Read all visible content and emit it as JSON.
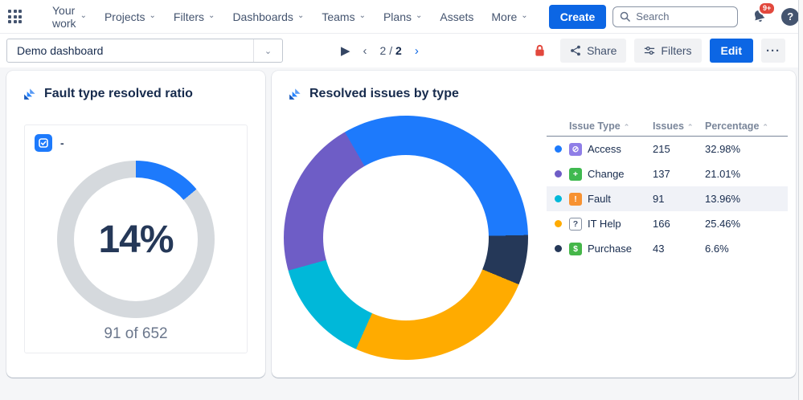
{
  "topnav": {
    "menu": [
      {
        "label": "Your work",
        "chevron": true
      },
      {
        "label": "Projects",
        "chevron": true
      },
      {
        "label": "Filters",
        "chevron": true
      },
      {
        "label": "Dashboards",
        "chevron": true
      },
      {
        "label": "Teams",
        "chevron": true
      },
      {
        "label": "Plans",
        "chevron": true
      },
      {
        "label": "Assets",
        "chevron": false
      },
      {
        "label": "More",
        "chevron": true
      }
    ],
    "create_label": "Create",
    "search_placeholder": "Search",
    "notifications_badge": "9+",
    "help_glyph": "?"
  },
  "toolbar": {
    "dashboard_select_value": "Demo dashboard",
    "pagination": {
      "current": "2",
      "separator": " / ",
      "total": "2"
    },
    "share_label": "Share",
    "filters_label": "Filters",
    "edit_label": "Edit",
    "more_label": "···"
  },
  "colors": {
    "brand_blue": "#0C66E4",
    "chart_blue": "#1D7AFC",
    "chart_purple": "#6E5DC6",
    "chart_cyan": "#00B8D9",
    "chart_amber": "#FFAB00",
    "chart_navy": "#253858",
    "gauge_track": "#D5D9DD",
    "lock_red": "#E2483D",
    "row_highlight": "#F0F2F7"
  },
  "chart_data": [
    {
      "type": "pie",
      "variant": "donut-gauge",
      "title": "Fault type resolved ratio",
      "filter_placeholder": "-",
      "center_label": "14%",
      "sub_label": "91 of 652",
      "numerator": 91,
      "denominator": 652,
      "value_pct": 14,
      "start_angle_deg": 0,
      "value_color": "#1D7AFC",
      "track_color": "#D5D9DD"
    },
    {
      "type": "pie",
      "variant": "donut",
      "title": "Resolved issues by type",
      "start_angle_deg": -30,
      "slices_clockwise": [
        {
          "label": "Access",
          "issues": 215,
          "pct": 32.98,
          "color": "#1D7AFC"
        },
        {
          "label": "Purchase",
          "issues": 43,
          "pct": 6.6,
          "color": "#253858"
        },
        {
          "label": "IT Help",
          "issues": 166,
          "pct": 25.46,
          "color": "#FFAB00"
        },
        {
          "label": "Fault",
          "issues": 91,
          "pct": 13.96,
          "color": "#00B8D9"
        },
        {
          "label": "Change",
          "issues": 137,
          "pct": 21.01,
          "color": "#6E5DC6"
        }
      ],
      "table": {
        "columns": [
          "Issue Type",
          "Issues",
          "Percentage"
        ],
        "sort_caret": "⌃",
        "rows": [
          {
            "dot": "#1D7AFC",
            "icon": {
              "name": "access-icon",
              "glyph": "⊘",
              "bg": "#8F7EE7",
              "fg": "#FFFFFF",
              "border": "none"
            },
            "type": "Access",
            "issues": "215",
            "pct": "32.98%",
            "highlight": false
          },
          {
            "dot": "#6E5DC6",
            "icon": {
              "name": "change-icon",
              "glyph": "+",
              "bg": "#3FB950",
              "fg": "#FFFFFF",
              "border": "none"
            },
            "type": "Change",
            "issues": "137",
            "pct": "21.01%",
            "highlight": false
          },
          {
            "dot": "#00B8D9",
            "icon": {
              "name": "fault-icon",
              "glyph": "!",
              "bg": "#F79232",
              "fg": "#FFFFFF",
              "border": "none"
            },
            "type": "Fault",
            "issues": "91",
            "pct": "13.96%",
            "highlight": true
          },
          {
            "dot": "#FFAB00",
            "icon": {
              "name": "it-help-icon",
              "glyph": "?",
              "bg": "#FFFFFF",
              "fg": "#44546F",
              "border": "1px solid #8590A2"
            },
            "type": "IT Help",
            "issues": "166",
            "pct": "25.46%",
            "highlight": false
          },
          {
            "dot": "#253858",
            "icon": {
              "name": "purchase-icon",
              "glyph": "$",
              "bg": "#45B649",
              "fg": "#FFFFFF",
              "border": "none"
            },
            "type": "Purchase",
            "issues": "43",
            "pct": "6.6%",
            "highlight": false
          }
        ]
      }
    }
  ]
}
